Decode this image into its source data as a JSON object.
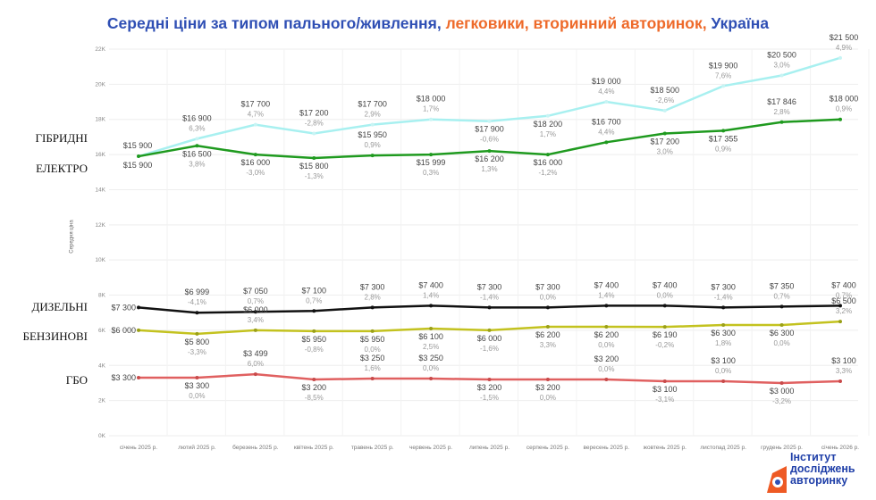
{
  "title": {
    "part1": "Середні ціни за типом пального/живлення, ",
    "part2": "легковики, вторинний авторинок, ",
    "part3": "Україна"
  },
  "logo": {
    "line1": "Інститут",
    "line2": "досліджень",
    "line3": "авторинку"
  },
  "chart_data": {
    "type": "line",
    "ylabel": "Середня ціна",
    "ylim": [
      0,
      22000
    ],
    "yticks": [
      "0K",
      "2K",
      "4K",
      "6K",
      "8K",
      "10K",
      "12K",
      "14K",
      "16K",
      "18K",
      "20K",
      "22K"
    ],
    "grid": true,
    "categories": [
      "січень 2025 р.",
      "лютий 2025 р.",
      "березень 2025 р.",
      "квітень 2025 р.",
      "травень 2025 р.",
      "червень 2025 р.",
      "липень 2025 р.",
      "серпень 2025 р.",
      "вересень 2025 р.",
      "жовтень 2025 р.",
      "листопад 2025 р.",
      "грудень 2025 р.",
      "січень 2026 р."
    ],
    "series": [
      {
        "name": "ГІБРИДНІ",
        "color": "#a8f0f0",
        "values": [
          15900,
          16900,
          17700,
          17200,
          17700,
          18000,
          17900,
          18200,
          19000,
          18500,
          19900,
          20500,
          21500
        ],
        "labels": [
          "$15 900",
          "$16 900",
          "$17 700",
          "$17 200",
          "$17 700",
          "$18 000",
          "$17 900",
          "$18 200",
          "$19 000",
          "$18 500",
          "$19 900",
          "$20 500",
          "$21 500"
        ],
        "changes": [
          "",
          "6,3%",
          "4,7%",
          "-2,8%",
          "2,9%",
          "1,7%",
          "-0,6%",
          "1,7%",
          "4,4%",
          "-2,6%",
          "7,6%",
          "3,0%",
          "4,9%"
        ]
      },
      {
        "name": "ЕЛЕКТРО",
        "color": "#1f9a1f",
        "values": [
          15900,
          16500,
          16000,
          15800,
          15950,
          15999,
          16200,
          16000,
          16700,
          17200,
          17355,
          17846,
          18000
        ],
        "labels": [
          "$15 900",
          "$16 500",
          "$16 000",
          "$15 800",
          "$15 950",
          "$15 999",
          "$16 200",
          "$16 000",
          "$16 700",
          "$17 200",
          "$17 355",
          "$17 846",
          "$18 000"
        ],
        "changes": [
          "",
          "3,8%",
          "-3,0%",
          "-1,3%",
          "0,9%",
          "0,3%",
          "1,3%",
          "-1,2%",
          "4,4%",
          "3,0%",
          "0,9%",
          "2,8%",
          "0,9%"
        ]
      },
      {
        "name": "ДИЗЕЛЬНІ",
        "color": "#111111",
        "values": [
          7300,
          6999,
          7050,
          7100,
          7300,
          7400,
          7300,
          7300,
          7400,
          7400,
          7300,
          7350,
          7400
        ],
        "labels": [
          "$7 300",
          "$6 999",
          "$7 050",
          "$7 100",
          "$7 300",
          "$7 400",
          "$7 300",
          "$7 300",
          "$7 400",
          "$7 400",
          "$7 300",
          "$7 350",
          "$7 400"
        ],
        "changes": [
          "",
          "-4,1%",
          "0,7%",
          "0,7%",
          "2,8%",
          "1,4%",
          "-1,4%",
          "0,0%",
          "1,4%",
          "0,0%",
          "-1,4%",
          "0,7%",
          "0,7%"
        ]
      },
      {
        "name": "БЕНЗИНОВІ",
        "color": "#c3c21f",
        "values": [
          6000,
          5800,
          6000,
          5950,
          5950,
          6100,
          6000,
          6200,
          6200,
          6190,
          6300,
          6300,
          6500
        ],
        "labels": [
          "$6 000",
          "$5 800",
          "$6 000",
          "$5 950",
          "$5 950",
          "$6 100",
          "$6 000",
          "$6 200",
          "$6 200",
          "$6 190",
          "$6 300",
          "$6 300",
          "$6 500"
        ],
        "changes": [
          "",
          "-3,3%",
          "3,4%",
          "-0,8%",
          "0,0%",
          "2,5%",
          "-1,6%",
          "3,3%",
          "0,0%",
          "-0,2%",
          "1,8%",
          "0,0%",
          "3,2%"
        ]
      },
      {
        "name": "ГБО",
        "color": "#e06060",
        "values": [
          3300,
          3300,
          3499,
          3200,
          3250,
          3250,
          3200,
          3200,
          3200,
          3100,
          3100,
          3000,
          3100
        ],
        "labels": [
          "$3 300",
          "$3 300",
          "$3 499",
          "$3 200",
          "$3 250",
          "$3 250",
          "$3 200",
          "$3 200",
          "$3 200",
          "$3 100",
          "$3 100",
          "$3 000",
          "$3 100"
        ],
        "changes": [
          "",
          "0,0%",
          "6,0%",
          "-8,5%",
          "1,6%",
          "0,0%",
          "-1,5%",
          "0,0%",
          "0,0%",
          "-3,1%",
          "0,0%",
          "-3,2%",
          "3,3%"
        ]
      }
    ]
  }
}
